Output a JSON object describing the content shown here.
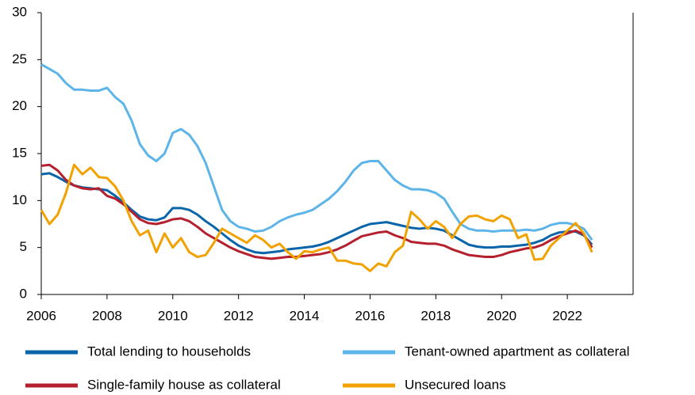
{
  "chart_data": {
    "type": "line",
    "x": [
      2006,
      2006.25,
      2006.5,
      2006.75,
      2007,
      2007.25,
      2007.5,
      2007.75,
      2008,
      2008.25,
      2008.5,
      2008.75,
      2009,
      2009.25,
      2009.5,
      2009.75,
      2010,
      2010.25,
      2010.5,
      2010.75,
      2011,
      2011.25,
      2011.5,
      2011.75,
      2012,
      2012.25,
      2012.5,
      2012.75,
      2013,
      2013.25,
      2013.5,
      2013.75,
      2014,
      2014.25,
      2014.5,
      2014.75,
      2015,
      2015.25,
      2015.5,
      2015.75,
      2016,
      2016.25,
      2016.5,
      2016.75,
      2017,
      2017.25,
      2017.5,
      2017.75,
      2018,
      2018.25,
      2018.5,
      2018.75,
      2019,
      2019.25,
      2019.5,
      2019.75,
      2020,
      2020.25,
      2020.5,
      2020.75,
      2021,
      2021.25,
      2021.5,
      2021.75,
      2022,
      2022.25,
      2022.5,
      2022.75
    ],
    "series": [
      {
        "name": "Total lending to households",
        "color": "#0a64aa",
        "values": [
          12.8,
          12.9,
          12.5,
          12.0,
          11.6,
          11.4,
          11.3,
          11.2,
          11.1,
          10.5,
          9.8,
          9.0,
          8.3,
          8.0,
          7.9,
          8.2,
          9.2,
          9.2,
          9.0,
          8.5,
          7.8,
          7.2,
          6.5,
          5.8,
          5.2,
          4.8,
          4.5,
          4.4,
          4.5,
          4.6,
          4.8,
          4.9,
          5.0,
          5.1,
          5.3,
          5.6,
          6.0,
          6.4,
          6.8,
          7.2,
          7.5,
          7.6,
          7.7,
          7.5,
          7.3,
          7.1,
          7.0,
          7.1,
          7.0,
          6.8,
          6.3,
          5.8,
          5.3,
          5.1,
          5.0,
          5.0,
          5.1,
          5.1,
          5.2,
          5.3,
          5.5,
          5.8,
          6.3,
          6.6,
          6.7,
          6.7,
          6.3,
          5.3
        ]
      },
      {
        "name": "Tenant-owned apartment as collateral",
        "color": "#5cb4e8",
        "values": [
          24.5,
          24.0,
          23.5,
          22.5,
          21.8,
          21.8,
          21.7,
          21.7,
          22.0,
          21.0,
          20.3,
          18.5,
          16.0,
          14.8,
          14.2,
          15.0,
          17.2,
          17.6,
          17.0,
          15.8,
          14.0,
          11.5,
          9.0,
          7.8,
          7.2,
          7.0,
          6.7,
          6.8,
          7.2,
          7.8,
          8.2,
          8.5,
          8.7,
          9.0,
          9.6,
          10.2,
          11.0,
          12.0,
          13.2,
          14.0,
          14.2,
          14.2,
          13.2,
          12.2,
          11.6,
          11.2,
          11.2,
          11.1,
          10.8,
          10.2,
          8.8,
          7.5,
          7.0,
          6.8,
          6.8,
          6.7,
          6.8,
          6.8,
          6.8,
          6.9,
          6.8,
          7.0,
          7.4,
          7.6,
          7.6,
          7.4,
          7.0,
          5.8
        ]
      },
      {
        "name": "Single-family house as collateral",
        "color": "#b5202e",
        "values": [
          13.7,
          13.8,
          13.2,
          12.2,
          11.6,
          11.3,
          11.2,
          11.3,
          10.5,
          10.2,
          9.6,
          8.8,
          8.0,
          7.6,
          7.5,
          7.7,
          8.0,
          8.1,
          7.8,
          7.2,
          6.5,
          6.0,
          5.5,
          5.0,
          4.6,
          4.3,
          4.0,
          3.9,
          3.8,
          3.9,
          4.0,
          4.0,
          4.1,
          4.2,
          4.3,
          4.5,
          4.8,
          5.2,
          5.7,
          6.2,
          6.4,
          6.6,
          6.7,
          6.3,
          6.0,
          5.6,
          5.5,
          5.4,
          5.4,
          5.2,
          4.8,
          4.5,
          4.2,
          4.1,
          4.0,
          4.0,
          4.2,
          4.5,
          4.7,
          4.9,
          5.0,
          5.3,
          5.8,
          6.2,
          6.5,
          6.8,
          6.4,
          5.0
        ]
      },
      {
        "name": "Unsecured loans",
        "color": "#f2a200",
        "values": [
          9.0,
          7.5,
          8.5,
          10.8,
          13.8,
          12.8,
          13.5,
          12.5,
          12.4,
          11.5,
          10.0,
          7.8,
          6.3,
          6.8,
          4.5,
          6.5,
          5.0,
          6.0,
          4.5,
          4.0,
          4.2,
          5.5,
          7.0,
          6.5,
          6.0,
          5.5,
          6.3,
          5.8,
          5.0,
          5.4,
          4.5,
          3.8,
          4.6,
          4.5,
          4.8,
          5.0,
          3.6,
          3.6,
          3.3,
          3.2,
          2.5,
          3.3,
          3.0,
          4.5,
          5.2,
          8.8,
          8.0,
          7.0,
          7.8,
          7.2,
          6.0,
          7.5,
          8.3,
          8.4,
          8.0,
          7.8,
          8.4,
          8.0,
          6.0,
          6.4,
          3.7,
          3.8,
          5.2,
          6.0,
          6.8,
          7.6,
          6.5,
          4.5
        ]
      }
    ],
    "xlim": [
      2006,
      2024
    ],
    "xticks": [
      2006,
      2008,
      2010,
      2012,
      2014,
      2016,
      2018,
      2020,
      2022
    ],
    "ylim": [
      0,
      30
    ],
    "yticks": [
      0,
      5,
      10,
      15,
      20,
      25,
      30
    ],
    "grid": false
  }
}
